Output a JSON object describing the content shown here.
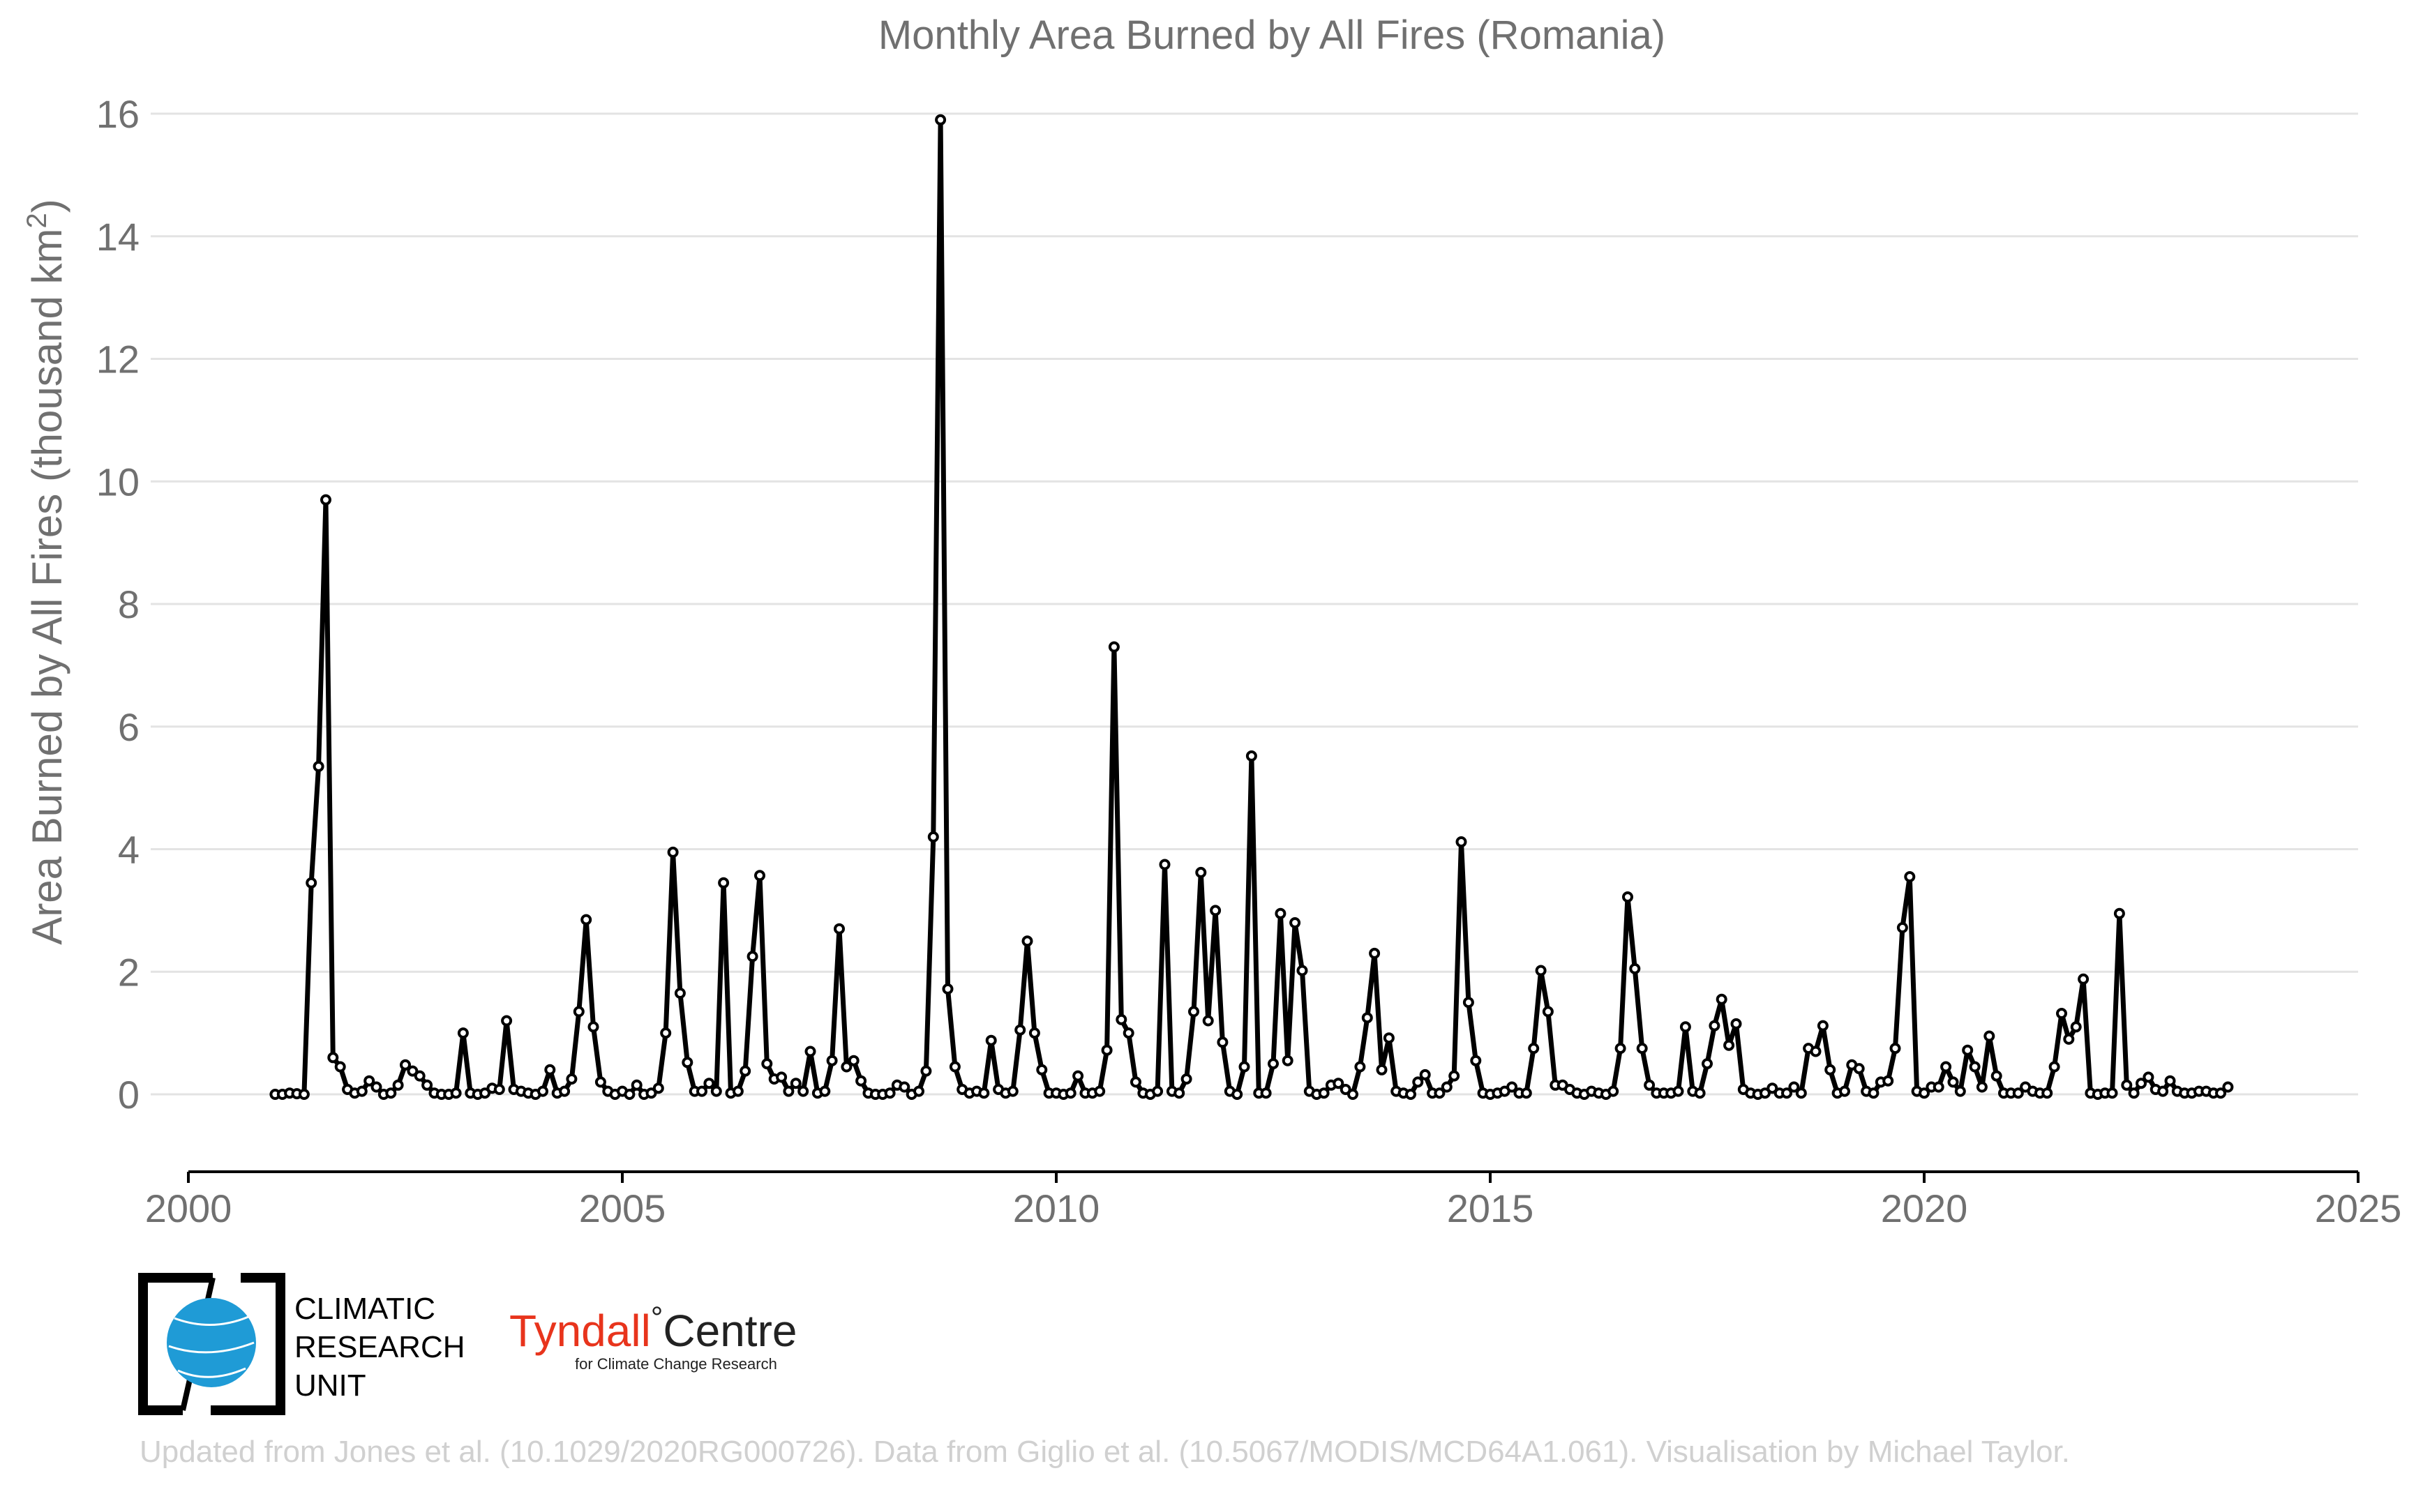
{
  "chart_data": {
    "type": "line",
    "title": "Monthly Area Burned by All Fires (Romania)",
    "xlabel": "",
    "ylabel": "Area Burned by All Fires (thousand km²)",
    "ylabel_base": "Area Burned by All Fires (thousand km",
    "ylabel_sup": "2",
    "ylabel_end": ")",
    "xlim": [
      2000,
      2025
    ],
    "ylim": [
      -1.3,
      16.2
    ],
    "x_ticks": [
      2000,
      2005,
      2010,
      2015,
      2020,
      2025
    ],
    "y_ticks": [
      0,
      2,
      4,
      6,
      8,
      10,
      12,
      14,
      16
    ],
    "grid": true,
    "legend": "none",
    "line_color": "#000000",
    "start_year": 2001,
    "start_month": 1,
    "series": [
      {
        "values": [
          0.0,
          0.0,
          0.02,
          0.01,
          0.0,
          3.45,
          5.35,
          9.7,
          0.6,
          0.45,
          0.08,
          0.02,
          0.05,
          0.22,
          0.12,
          0.0,
          0.02,
          0.15,
          0.48,
          0.38,
          0.3,
          0.15,
          0.02,
          0.0,
          0.0,
          0.02,
          1.0,
          0.02,
          0.0,
          0.02,
          0.1,
          0.08,
          1.2,
          0.08,
          0.05,
          0.02,
          0.0,
          0.05,
          0.4,
          0.02,
          0.05,
          0.25,
          1.35,
          2.85,
          1.1,
          0.2,
          0.05,
          0.0,
          0.05,
          0.0,
          0.15,
          0.0,
          0.02,
          0.1,
          1.0,
          3.95,
          1.65,
          0.52,
          0.05,
          0.05,
          0.18,
          0.05,
          3.45,
          0.02,
          0.05,
          0.38,
          2.25,
          3.57,
          0.5,
          0.25,
          0.28,
          0.05,
          0.18,
          0.05,
          0.7,
          0.02,
          0.05,
          0.55,
          2.7,
          0.45,
          0.55,
          0.22,
          0.02,
          0.0,
          0.0,
          0.02,
          0.15,
          0.12,
          0.0,
          0.05,
          0.38,
          4.2,
          15.9,
          1.72,
          0.45,
          0.08,
          0.02,
          0.05,
          0.02,
          0.88,
          0.08,
          0.02,
          0.05,
          1.05,
          2.5,
          1.0,
          0.4,
          0.02,
          0.02,
          0.0,
          0.02,
          0.3,
          0.02,
          0.02,
          0.05,
          0.72,
          7.3,
          1.22,
          1.0,
          0.2,
          0.02,
          0.0,
          0.05,
          3.75,
          0.05,
          0.02,
          0.25,
          1.35,
          3.62,
          1.2,
          3.0,
          0.85,
          0.05,
          0.0,
          0.45,
          5.52,
          0.02,
          0.02,
          0.5,
          2.95,
          0.55,
          2.8,
          2.02,
          0.05,
          0.0,
          0.02,
          0.15,
          0.18,
          0.08,
          0.0,
          0.45,
          1.25,
          2.3,
          0.4,
          0.92,
          0.05,
          0.02,
          0.0,
          0.2,
          0.32,
          0.02,
          0.02,
          0.12,
          0.3,
          4.12,
          1.5,
          0.55,
          0.02,
          0.0,
          0.02,
          0.05,
          0.12,
          0.02,
          0.02,
          0.75,
          2.02,
          1.35,
          0.15,
          0.15,
          0.08,
          0.02,
          0.0,
          0.05,
          0.02,
          0.0,
          0.05,
          0.75,
          3.22,
          2.05,
          0.75,
          0.15,
          0.02,
          0.02,
          0.02,
          0.05,
          1.1,
          0.05,
          0.02,
          0.5,
          1.12,
          1.55,
          0.8,
          1.15,
          0.08,
          0.02,
          0.0,
          0.02,
          0.1,
          0.02,
          0.02,
          0.12,
          0.02,
          0.75,
          0.7,
          1.12,
          0.4,
          0.02,
          0.05,
          0.48,
          0.42,
          0.05,
          0.02,
          0.2,
          0.22,
          0.75,
          2.72,
          3.55,
          0.05,
          0.02,
          0.12,
          0.12,
          0.45,
          0.2,
          0.05,
          0.72,
          0.45,
          0.12,
          0.95,
          0.3,
          0.02,
          0.02,
          0.02,
          0.12,
          0.05,
          0.02,
          0.02,
          0.45,
          1.32,
          0.9,
          1.1,
          1.88,
          0.02,
          0.0,
          0.02,
          0.02,
          2.95,
          0.15,
          0.02,
          0.18,
          0.28,
          0.08,
          0.05,
          0.22,
          0.05,
          0.02,
          0.02,
          0.05,
          0.05,
          0.02,
          0.02,
          0.12
        ]
      }
    ]
  },
  "logos": {
    "cru_lines": [
      "CLIMATIC",
      "RESEARCH",
      "UNIT"
    ],
    "tyndall_main": "Tyndall",
    "tyndall_degree": "°",
    "tyndall_centre": "Centre",
    "tyndall_sub": "for Climate Change Research",
    "cru_globe_color": "#1f9bd6",
    "tyndall_color": "#e8341c"
  },
  "credit": "Updated from Jones et al. (10.1029/2020RG000726). Data from Giglio et al. (10.5067/MODIS/MCD64A1.061). Visualisation by Michael Taylor."
}
